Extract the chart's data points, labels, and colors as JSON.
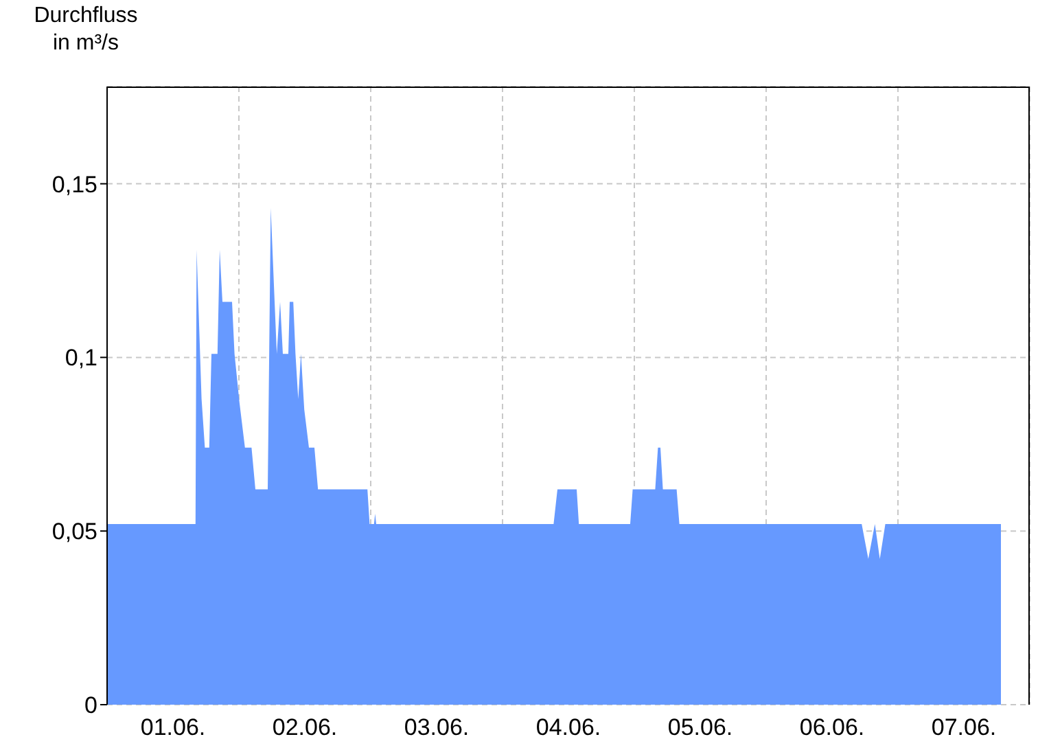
{
  "chart_data": {
    "type": "area",
    "ylabel": "Durchfluss\nin m³/s",
    "x": [
      "--06-01T00:00",
      "--06-01T16:06",
      "--06-01T16:18",
      "--06-01T17:12",
      "--06-01T17:48",
      "--06-01T18:36",
      "--06-01T19:00",
      "--06-01T20:06",
      "--06-01T20:30",
      "--06-01T21:00",
      "--06-01T22:45",
      "--06-01T23:12",
      "--06-02T00:06",
      "--06-02T01:06",
      "--06-02T02:18",
      "--06-02T03:00",
      "--06-02T05:15",
      "--06-02T05:48",
      "--06-02T06:30",
      "--06-02T06:54",
      "--06-02T07:30",
      "--06-02T08:00",
      "--06-02T09:00",
      "--06-02T09:15",
      "--06-02T09:54",
      "--06-02T10:18",
      "--06-02T10:48",
      "--06-02T11:18",
      "--06-02T11:54",
      "--06-02T12:45",
      "--06-02T13:45",
      "--06-02T14:24",
      "--06-02T23:24",
      "--06-02T23:48",
      "--06-03T00:36",
      "--06-03T00:48",
      "--06-03T01:00",
      "--06-04T09:18",
      "--06-04T10:00",
      "--06-04T13:30",
      "--06-04T13:54",
      "--06-04T23:15",
      "--06-04T23:42",
      "--06-05T03:48",
      "--06-05T04:18",
      "--06-05T04:45",
      "--06-05T05:12",
      "--06-05T07:42",
      "--06-05T08:12",
      "--06-06T17:24",
      "--06-06T18:36",
      "--06-06T19:48",
      "--06-06T20:42",
      "--06-06T21:42",
      "--06-07T18:45"
    ],
    "series": [
      {
        "color": "#6699ff",
        "values": [
          0.052,
          0.052,
          0.131,
          0.088,
          0.074,
          0.074,
          0.101,
          0.101,
          0.131,
          0.116,
          0.116,
          0.101,
          0.087,
          0.074,
          0.074,
          0.062,
          0.062,
          0.143,
          0.116,
          0.101,
          0.116,
          0.101,
          0.101,
          0.116,
          0.116,
          0.101,
          0.088,
          0.101,
          0.085,
          0.074,
          0.074,
          0.062,
          0.062,
          0.052,
          0.052,
          0.055,
          0.052,
          0.052,
          0.062,
          0.062,
          0.052,
          0.052,
          0.062,
          0.062,
          0.074,
          0.074,
          0.062,
          0.062,
          0.052,
          0.052,
          0.042,
          0.052,
          0.042,
          0.052,
          0.052
        ]
      }
    ],
    "xlim": [
      "--06-01T00:00",
      "--06-08T00:00"
    ],
    "xticks": [
      {
        "value": "--06-01T00:00",
        "label": null
      },
      {
        "value": "--06-01T12:00",
        "label": "01.06."
      },
      {
        "value": "--06-02T00:00",
        "label": null
      },
      {
        "value": "--06-02T12:00",
        "label": "02.06."
      },
      {
        "value": "--06-03T00:00",
        "label": null
      },
      {
        "value": "--06-03T12:00",
        "label": "03.06."
      },
      {
        "value": "--06-04T00:00",
        "label": null
      },
      {
        "value": "--06-04T12:00",
        "label": "04.06."
      },
      {
        "value": "--06-05T00:00",
        "label": null
      },
      {
        "value": "--06-05T12:00",
        "label": "05.06."
      },
      {
        "value": "--06-06T00:00",
        "label": null
      },
      {
        "value": "--06-06T12:00",
        "label": "06.06."
      },
      {
        "value": "--06-07T00:00",
        "label": null
      },
      {
        "value": "--06-07T12:00",
        "label": "07.06."
      }
    ],
    "ylim": [
      0,
      0.178
    ],
    "yticks": [
      {
        "value": 0,
        "label": "0"
      },
      {
        "value": 0.05,
        "label": "0,05"
      },
      {
        "value": 0.1,
        "label": "0,1"
      },
      {
        "value": 0.15,
        "label": "0,15"
      }
    ],
    "grid": true
  }
}
